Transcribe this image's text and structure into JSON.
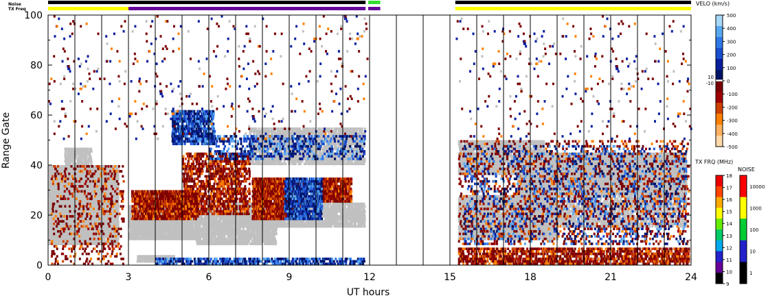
{
  "chart_data": {
    "type": "heatmap",
    "xlabel": "UT hours",
    "ylabel": "Range Gate",
    "xlim": [
      0,
      24
    ],
    "ylim": [
      0,
      100
    ],
    "x_ticks": [
      0,
      3,
      6,
      9,
      12,
      15,
      18,
      21,
      24
    ],
    "y_ticks": [
      0,
      20,
      40,
      60,
      80,
      100
    ],
    "hour_gridlines": true,
    "status_bars": {
      "noise_label": "Noise",
      "txfreq_label": "TX Freq",
      "noise_segments": [
        {
          "start": 0,
          "end": 11.85,
          "color": "#000000"
        },
        {
          "start": 11.95,
          "end": 12.4,
          "color": "#33dd33"
        },
        {
          "start": 15.2,
          "end": 24,
          "color": "#000000"
        }
      ],
      "txfreq_segments": [
        {
          "start": 0,
          "end": 3.0,
          "color": "#ffff00"
        },
        {
          "start": 3.0,
          "end": 11.85,
          "color": "#660099"
        },
        {
          "start": 11.95,
          "end": 12.4,
          "color": "#660099"
        },
        {
          "start": 15.2,
          "end": 24,
          "color": "#ffff00"
        }
      ]
    },
    "data_gap_hours": [
      12.0,
      15.2
    ],
    "velocity_scale": {
      "title": "VELO (km/s)",
      "ticks": [
        500,
        400,
        300,
        200,
        100,
        0,
        -100,
        -200,
        -300,
        -400,
        -500
      ],
      "marks": [
        "10",
        "-10"
      ],
      "colors": [
        "#ffd9a8",
        "#ffb060",
        "#ff8000",
        "#d04000",
        "#a00000",
        "#7a0000",
        "#001466",
        "#0a1f9e",
        "#1a4fd0",
        "#2f78e8",
        "#58a8f0",
        "#a8d8f8"
      ]
    },
    "txfreq_scale": {
      "title": "TX FRQ (MHz)",
      "ticks": [
        18,
        17,
        16,
        15,
        14,
        13,
        12,
        11,
        10,
        9
      ],
      "colors": [
        "#000000",
        "#660099",
        "#2222cc",
        "#00aaee",
        "#00cc66",
        "#66ee00",
        "#ffff00",
        "#ffaa00",
        "#ff4400",
        "#ee0000"
      ]
    },
    "noise_scale": {
      "title": "NOISE",
      "ticks": [
        "10000",
        "1000",
        "100",
        "10",
        "1"
      ],
      "colors": [
        "#000000",
        "#2222cc",
        "#00cc33",
        "#ffff00",
        "#ff0000"
      ]
    },
    "regions": [
      {
        "kind": "ground",
        "t0": 0,
        "t1": 2.6,
        "g0": 8,
        "g1": 40,
        "density": 0.85
      },
      {
        "kind": "ground",
        "t0": 0.6,
        "t1": 1.6,
        "g0": 32,
        "g1": 47,
        "density": 0.6
      },
      {
        "kind": "ground",
        "t0": 3.0,
        "t1": 5.5,
        "g0": 10,
        "g1": 24,
        "density": 0.75
      },
      {
        "kind": "ground",
        "t0": 5.5,
        "t1": 8.5,
        "g0": 8,
        "g1": 22,
        "density": 0.55
      },
      {
        "kind": "ground",
        "t0": 6.5,
        "t1": 11.8,
        "g0": 15,
        "g1": 25,
        "density": 0.55
      },
      {
        "kind": "ground",
        "t0": 7.5,
        "t1": 11.8,
        "g0": 40,
        "g1": 55,
        "density": 0.45
      },
      {
        "kind": "ground",
        "t0": 15.3,
        "t1": 19.0,
        "g0": 10,
        "g1": 28,
        "density": 0.7
      },
      {
        "kind": "ground",
        "t0": 15.3,
        "t1": 18.5,
        "g0": 36,
        "g1": 50,
        "density": 0.55
      },
      {
        "kind": "ground",
        "t0": 17.5,
        "t1": 23.8,
        "g0": 28,
        "g1": 45,
        "density": 0.8
      },
      {
        "kind": "ground",
        "t0": 19.0,
        "t1": 23.8,
        "g0": 15,
        "g1": 28,
        "density": 0.35
      },
      {
        "kind": "ground",
        "t0": 3.3,
        "t1": 4.7,
        "g0": 1,
        "g1": 4,
        "density": 0.6
      },
      {
        "kind": "neg",
        "t0": 0.1,
        "t1": 2.8,
        "g0": 0,
        "g1": 40,
        "density": 0.08
      },
      {
        "kind": "neg",
        "t0": 3.1,
        "t1": 5.6,
        "g0": 18,
        "g1": 30,
        "density": 0.55
      },
      {
        "kind": "neg",
        "t0": 5.0,
        "t1": 7.5,
        "g0": 20,
        "g1": 45,
        "density": 0.3
      },
      {
        "kind": "neg",
        "t0": 7.6,
        "t1": 9.5,
        "g0": 18,
        "g1": 35,
        "density": 0.7
      },
      {
        "kind": "neg",
        "t0": 10.0,
        "t1": 11.3,
        "g0": 25,
        "g1": 35,
        "density": 0.6
      },
      {
        "kind": "neg",
        "t0": 15.3,
        "t1": 23.9,
        "g0": 0,
        "g1": 7,
        "density": 0.35
      },
      {
        "kind": "neg",
        "t0": 15.3,
        "t1": 23.9,
        "g0": 8,
        "g1": 50,
        "density": 0.07
      },
      {
        "kind": "pos",
        "t0": 8.8,
        "t1": 10.2,
        "g0": 18,
        "g1": 35,
        "density": 0.5
      },
      {
        "kind": "pos",
        "t0": 4.6,
        "t1": 6.2,
        "g0": 48,
        "g1": 62,
        "density": 0.45
      },
      {
        "kind": "pos",
        "t0": 4.0,
        "t1": 11.8,
        "g0": 0,
        "g1": 3,
        "density": 0.3
      },
      {
        "kind": "pos",
        "t0": 6.0,
        "t1": 11.8,
        "g0": 42,
        "g1": 52,
        "density": 0.15
      },
      {
        "kind": "pos",
        "t0": 15.5,
        "t1": 23.8,
        "g0": 8,
        "g1": 48,
        "density": 0.05
      },
      {
        "kind": "scatter",
        "t0": 0,
        "t1": 24,
        "g0": 50,
        "g1": 100,
        "density": 0.012
      }
    ]
  }
}
